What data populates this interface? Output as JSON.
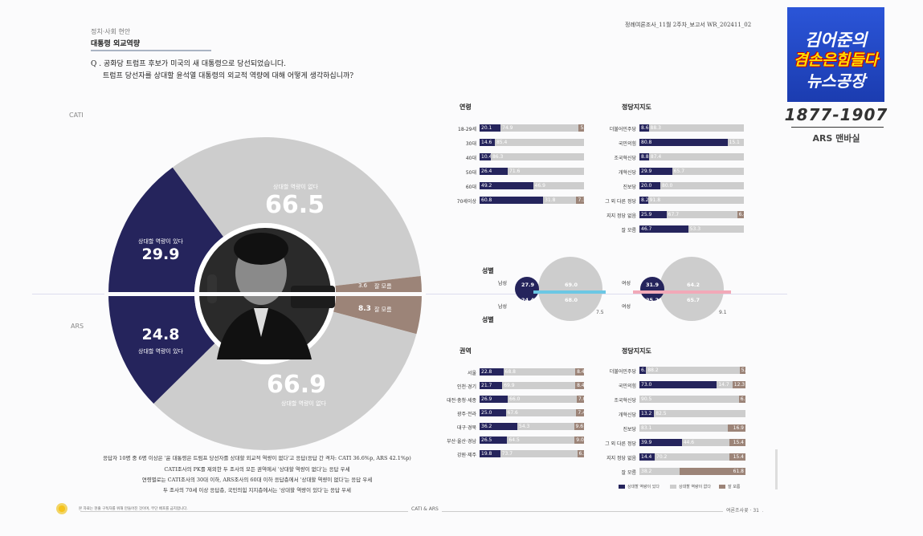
{
  "header": {
    "category": "정치·사회 현안",
    "title": "대통령 외교역량",
    "right": "정례여론조사_11월 2주차_보고서   WR_202411_02"
  },
  "question": {
    "line1": "Q . 공화당 트럼프 후보가 미국의 새 대통령으로 당선되었습니다.",
    "line2": "트럼프 당선자를 상대할 윤석열 대통령의 외교적 역량에 대해 어떻게 생각하십니까?"
  },
  "labels": {
    "cati": "CATI",
    "ars": "ARS"
  },
  "donut": {
    "cati": {
      "pos": {
        "label": "상대할 역량이 있다",
        "value": "29.9"
      },
      "neg": {
        "label": "상대할 역량이 없다",
        "value": "66.5"
      },
      "dk": {
        "label": "잘 모름",
        "value": "3.6"
      }
    },
    "ars": {
      "pos": {
        "label": "상대할 역량이 있다",
        "value": "24.8"
      },
      "neg": {
        "label": "상대할 역량이 없다",
        "value": "66.9"
      },
      "dk": {
        "label": "잘 모름",
        "value": "8.3"
      }
    }
  },
  "chart_data": {
    "type": "pie",
    "series": [
      {
        "name": "CATI",
        "categories": [
          "상대할 역량이 있다",
          "상대할 역량이 없다",
          "잘 모름"
        ],
        "values": [
          29.9,
          66.5,
          3.6
        ]
      },
      {
        "name": "ARS",
        "categories": [
          "상대할 역량이 있다",
          "상대할 역량이 없다",
          "잘 모름"
        ],
        "values": [
          24.8,
          66.9,
          8.3
        ]
      }
    ]
  },
  "summary": [
    "응답자 10명 중 6명 이상은 '윤 대통령은 트럼프 당선자를 상대할 외교적 역량이 없다'고 응답(응답 간 격차: CATI 36.6%p, ARS 42.1%p)",
    "CATI조사의 PK를 제외한 두 조사의 모든 권역에서 '상대할 역량이 없다'는 응답 우세",
    "연령별로는 CATI조사의 30대 이하, ARS조사의 60대 이하 응답층에서 '상대할 역량이 없다'는 응답 우세",
    "두 조사의 70세 이상 응답층, 국민의힘 지지층에서는 '상대할 역량이 있다'는 응답 우세"
  ],
  "sections": {
    "age": "연령",
    "party_top": "정당지지도",
    "gender_top": "성별",
    "gender_bottom": "성별",
    "region": "권역",
    "party_bottom": "정당지지도"
  },
  "age_rows": [
    {
      "label": "18-29세",
      "pos": 20.1,
      "neg": 74.9,
      "dk": 5.0
    },
    {
      "label": "30대",
      "pos": 14.6,
      "neg": 85.4,
      "dk": null
    },
    {
      "label": "40대",
      "pos": 10.4,
      "neg": 86.3,
      "dk": null
    },
    {
      "label": "50대",
      "pos": 26.4,
      "neg": 71.6,
      "dk": null
    },
    {
      "label": "60대",
      "pos": 49.2,
      "neg": 46.9,
      "dk": null
    },
    {
      "label": "70세이상",
      "pos": 60.8,
      "neg": 31.8,
      "dk": 7.3
    }
  ],
  "party_top_rows": [
    {
      "label": "더불어민주당",
      "pos": 8.6,
      "neg": 88.3,
      "dk": null
    },
    {
      "label": "국민의힘",
      "pos": 80.8,
      "neg": 15.1,
      "dk": null
    },
    {
      "label": "조국혁신당",
      "pos": 8.8,
      "neg": 87.4,
      "dk": null
    },
    {
      "label": "개혁신당",
      "pos": 29.9,
      "neg": 65.7,
      "dk": null
    },
    {
      "label": "진보당",
      "pos": 20.0,
      "neg": 80.0,
      "dk": null
    },
    {
      "label": "그 외 다른 정당",
      "pos": 8.2,
      "neg": 91.8,
      "dk": null
    },
    {
      "label": "지지 정당 없음",
      "pos": 25.9,
      "neg": 67.7,
      "dk": 6.4
    },
    {
      "label": "잘 모름",
      "pos": 46.7,
      "neg": 53.3,
      "dk": null
    }
  ],
  "gender": {
    "male_label": "남성",
    "female_label": "여성",
    "male_cati": {
      "pos": "27.9",
      "neg": "69.0"
    },
    "male_ars": {
      "pos": "24.4",
      "neg": "68.0",
      "dk": "7.5"
    },
    "female_cati": {
      "pos": "31.9",
      "neg": "64.2"
    },
    "female_ars": {
      "pos": "25.2",
      "neg": "65.7",
      "dk": "9.1"
    }
  },
  "region_rows": [
    {
      "label": "서울",
      "pos": 22.8,
      "neg": 68.8,
      "dk": 8.4
    },
    {
      "label": "인천·경기",
      "pos": 21.7,
      "neg": 69.9,
      "dk": 8.4
    },
    {
      "label": "대전·충청·세종",
      "pos": 26.9,
      "neg": 66.0,
      "dk": 7.0
    },
    {
      "label": "광주·전라",
      "pos": 25.0,
      "neg": 67.6,
      "dk": 7.4
    },
    {
      "label": "대구·경북",
      "pos": 36.2,
      "neg": 54.3,
      "dk": 9.6
    },
    {
      "label": "부산·울산·경남",
      "pos": 26.5,
      "neg": 64.5,
      "dk": 9.0
    },
    {
      "label": "강원·제주",
      "pos": 19.8,
      "neg": 73.7,
      "dk": 6.5
    }
  ],
  "party_bottom_rows": [
    {
      "label": "더불어민주당",
      "pos": 6.3,
      "neg": 88.2,
      "dk": 5.5
    },
    {
      "label": "국민의힘",
      "pos": 73.0,
      "neg": 14.7,
      "dk": 12.3
    },
    {
      "label": "조국혁신당",
      "pos": null,
      "neg": 90.5,
      "dk": 6.0
    },
    {
      "label": "개혁신당",
      "pos": 13.2,
      "neg": 82.5,
      "dk": null
    },
    {
      "label": "진보당",
      "pos": null,
      "neg": 83.1,
      "dk": 16.9
    },
    {
      "label": "그 외 다른 정당",
      "pos": 39.9,
      "neg": 44.6,
      "dk": 15.4
    },
    {
      "label": "지지 정당 없음",
      "pos": 14.4,
      "neg": 70.2,
      "dk": 15.4
    },
    {
      "label": "잘 모름",
      "pos": null,
      "neg": 38.2,
      "dk": 61.8
    }
  ],
  "legend": {
    "pos": "상대할 역량이 있다",
    "neg": "상대할 역량이 없다",
    "dk": "잘 모름"
  },
  "footer": {
    "left": "본 자료는 현출 구독자를 위해 만들어진 것이며, 무단 배포를 금지합니다.",
    "center": "CATI & ARS",
    "right": "여론조사꽃 · 31"
  },
  "brand": {
    "line1": "김어준의",
    "line2": "겸손은힘들다",
    "line3": "뉴스공장",
    "number": "1877-1907",
    "sub": "ARS 맨바실"
  },
  "colors": {
    "pos": "#25245c",
    "neg": "#cdcdcd",
    "dk": "#9c8478"
  }
}
